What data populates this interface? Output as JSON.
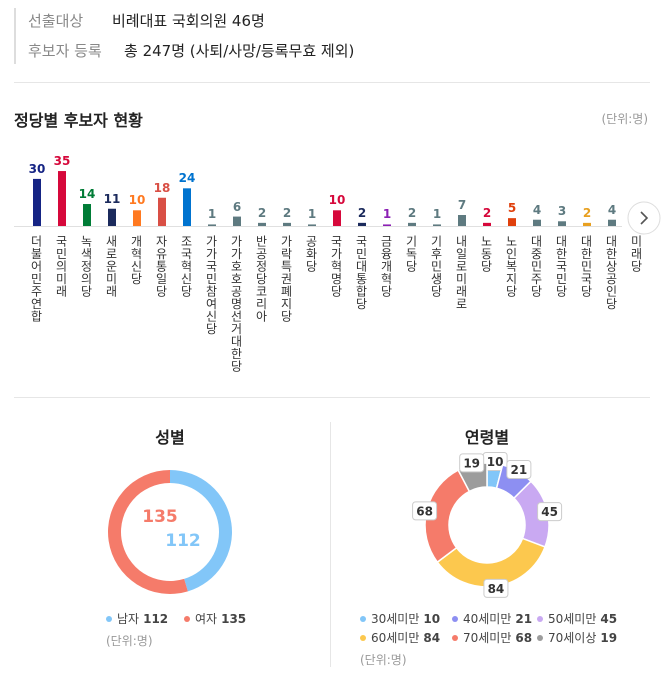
{
  "info": {
    "rows": [
      [
        "선출대상",
        "비례대표 국회의원 46명"
      ],
      [
        "후보자 등록",
        "총 247명 (사퇴/사망/등록무효 제외)"
      ]
    ]
  },
  "chart_data": [
    {
      "type": "bar",
      "title": "정당별 후보자 현황",
      "unit": "(단위:명)",
      "categories": [
        "더불어민주연합",
        "국민의미래",
        "녹색정의당",
        "새로운미래",
        "개혁신당",
        "자유통일당",
        "조국혁신당",
        "가가국민참여신당",
        "가가호호공명선거대한당",
        "반공정당코리아",
        "가락특권폐지당",
        "공화당",
        "국가혁명당",
        "국민대통합당",
        "금융개혁당",
        "기독당",
        "기후민생당",
        "내일로미래로",
        "노동당",
        "노인복지당",
        "대중민주당",
        "대한국민당",
        "대한민국당",
        "대한상공인당",
        "미래당"
      ],
      "values": [
        30,
        35,
        14,
        11,
        10,
        18,
        24,
        1,
        6,
        2,
        2,
        1,
        10,
        2,
        1,
        2,
        1,
        7,
        2,
        5,
        4,
        3,
        2,
        4,
        null
      ],
      "colors": [
        "#152484",
        "#d6083b",
        "#007c36",
        "#1b2a5c",
        "#ff7920",
        "#d94f45",
        "#0073cf",
        "#5e7a80",
        "#5e7a80",
        "#5e7a80",
        "#5e7a80",
        "#5e7a80",
        "#d6083b",
        "#1b2a5c",
        "#8b1fb4",
        "#5e7a80",
        "#5e7a80",
        "#5e7a80",
        "#d6083b",
        "#e0400c",
        "#5e7a80",
        "#5e7a80",
        "#e8a020",
        "#5e7a80",
        "#5e7a80"
      ]
    },
    {
      "type": "donut",
      "title": "성별",
      "unit": "(단위:명)",
      "categories": [
        "남자",
        "여자"
      ],
      "values": [
        112,
        135
      ],
      "colors": [
        "#82c6f8",
        "#f57b6a"
      ]
    },
    {
      "type": "donut",
      "title": "연령별",
      "unit": "(단위:명)",
      "categories": [
        "30세미만",
        "40세미만",
        "50세미만",
        "60세미만",
        "70세미만",
        "70세이상"
      ],
      "values": [
        10,
        21,
        45,
        84,
        68,
        19
      ],
      "colors": [
        "#82c6f8",
        "#8d8ff2",
        "#c9a9f2",
        "#fcc84e",
        "#f57b6a",
        "#9c9c9c"
      ]
    }
  ]
}
